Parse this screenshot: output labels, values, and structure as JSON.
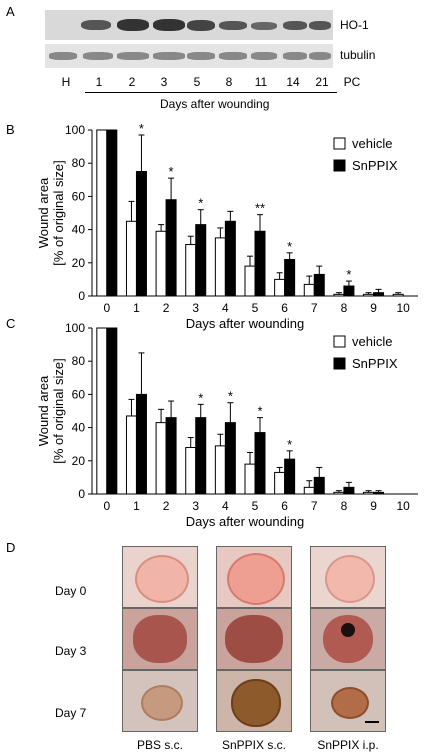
{
  "panel_labels": {
    "a": "A",
    "b": "B",
    "c": "C",
    "d": "D"
  },
  "blot": {
    "rows": [
      "HO-1",
      "tubulin"
    ],
    "lanes": [
      "H",
      "1",
      "2",
      "3",
      "5",
      "8",
      "11",
      "14",
      "21",
      "PC"
    ],
    "xlabel": "Days after wounding"
  },
  "chart_data": [
    {
      "type": "bar",
      "panel": "B",
      "categories": [
        "0",
        "1",
        "2",
        "3",
        "4",
        "5",
        "6",
        "7",
        "8",
        "9",
        "10"
      ],
      "ylabel": "Wound area\n[% of original size]",
      "xlabel": "Days after wounding",
      "ylim": [
        0,
        100
      ],
      "yticks": [
        "0",
        "20",
        "40",
        "60",
        "80",
        "100"
      ],
      "legend": "top-right",
      "series": [
        {
          "name": "vehicle",
          "color": "#ffffff",
          "values": [
            100,
            45,
            39,
            31,
            35,
            18,
            10,
            7,
            1,
            1,
            1
          ],
          "errors": [
            0,
            12,
            4,
            5,
            6,
            6,
            4,
            5,
            1,
            1,
            1
          ]
        },
        {
          "name": "SnPPIX",
          "color": "#000000",
          "values": [
            100,
            75,
            58,
            43,
            45,
            39,
            22,
            13,
            6,
            2,
            0
          ],
          "errors": [
            0,
            22,
            13,
            9,
            6,
            10,
            4,
            5,
            3,
            2,
            0
          ]
        }
      ],
      "annotations": [
        {
          "category": "1",
          "text": "*"
        },
        {
          "category": "2",
          "text": "*"
        },
        {
          "category": "3",
          "text": "*"
        },
        {
          "category": "5",
          "text": "**"
        },
        {
          "category": "6",
          "text": "*"
        },
        {
          "category": "8",
          "text": "*"
        }
      ]
    },
    {
      "type": "bar",
      "panel": "C",
      "categories": [
        "0",
        "1",
        "2",
        "3",
        "4",
        "5",
        "6",
        "7",
        "8",
        "9",
        "10"
      ],
      "ylabel": "Wound area\n[% of original size]",
      "xlabel": "Days after wounding",
      "ylim": [
        0,
        100
      ],
      "yticks": [
        "0",
        "20",
        "40",
        "60",
        "80",
        "100"
      ],
      "legend": "top-right",
      "series": [
        {
          "name": "vehicle",
          "color": "#ffffff",
          "values": [
            100,
            47,
            43,
            28,
            29,
            18,
            13,
            4,
            1,
            1,
            0
          ],
          "errors": [
            0,
            10,
            8,
            6,
            7,
            7,
            3,
            4,
            1,
            1,
            0
          ]
        },
        {
          "name": "SnPPIX",
          "color": "#000000",
          "values": [
            100,
            60,
            46,
            46,
            43,
            37,
            21,
            10,
            4,
            1,
            0
          ],
          "errors": [
            0,
            25,
            10,
            8,
            12,
            9,
            5,
            6,
            3,
            1,
            0
          ]
        }
      ],
      "annotations": [
        {
          "category": "3",
          "text": "*"
        },
        {
          "category": "4",
          "text": "*"
        },
        {
          "category": "5",
          "text": "*"
        },
        {
          "category": "6",
          "text": "*"
        }
      ]
    }
  ],
  "photos": {
    "rows": [
      "Day 0",
      "Day 3",
      "Day 7"
    ],
    "columns": [
      "PBS s.c.",
      "SnPPIX s.c.",
      "SnPPIX i.p."
    ]
  }
}
